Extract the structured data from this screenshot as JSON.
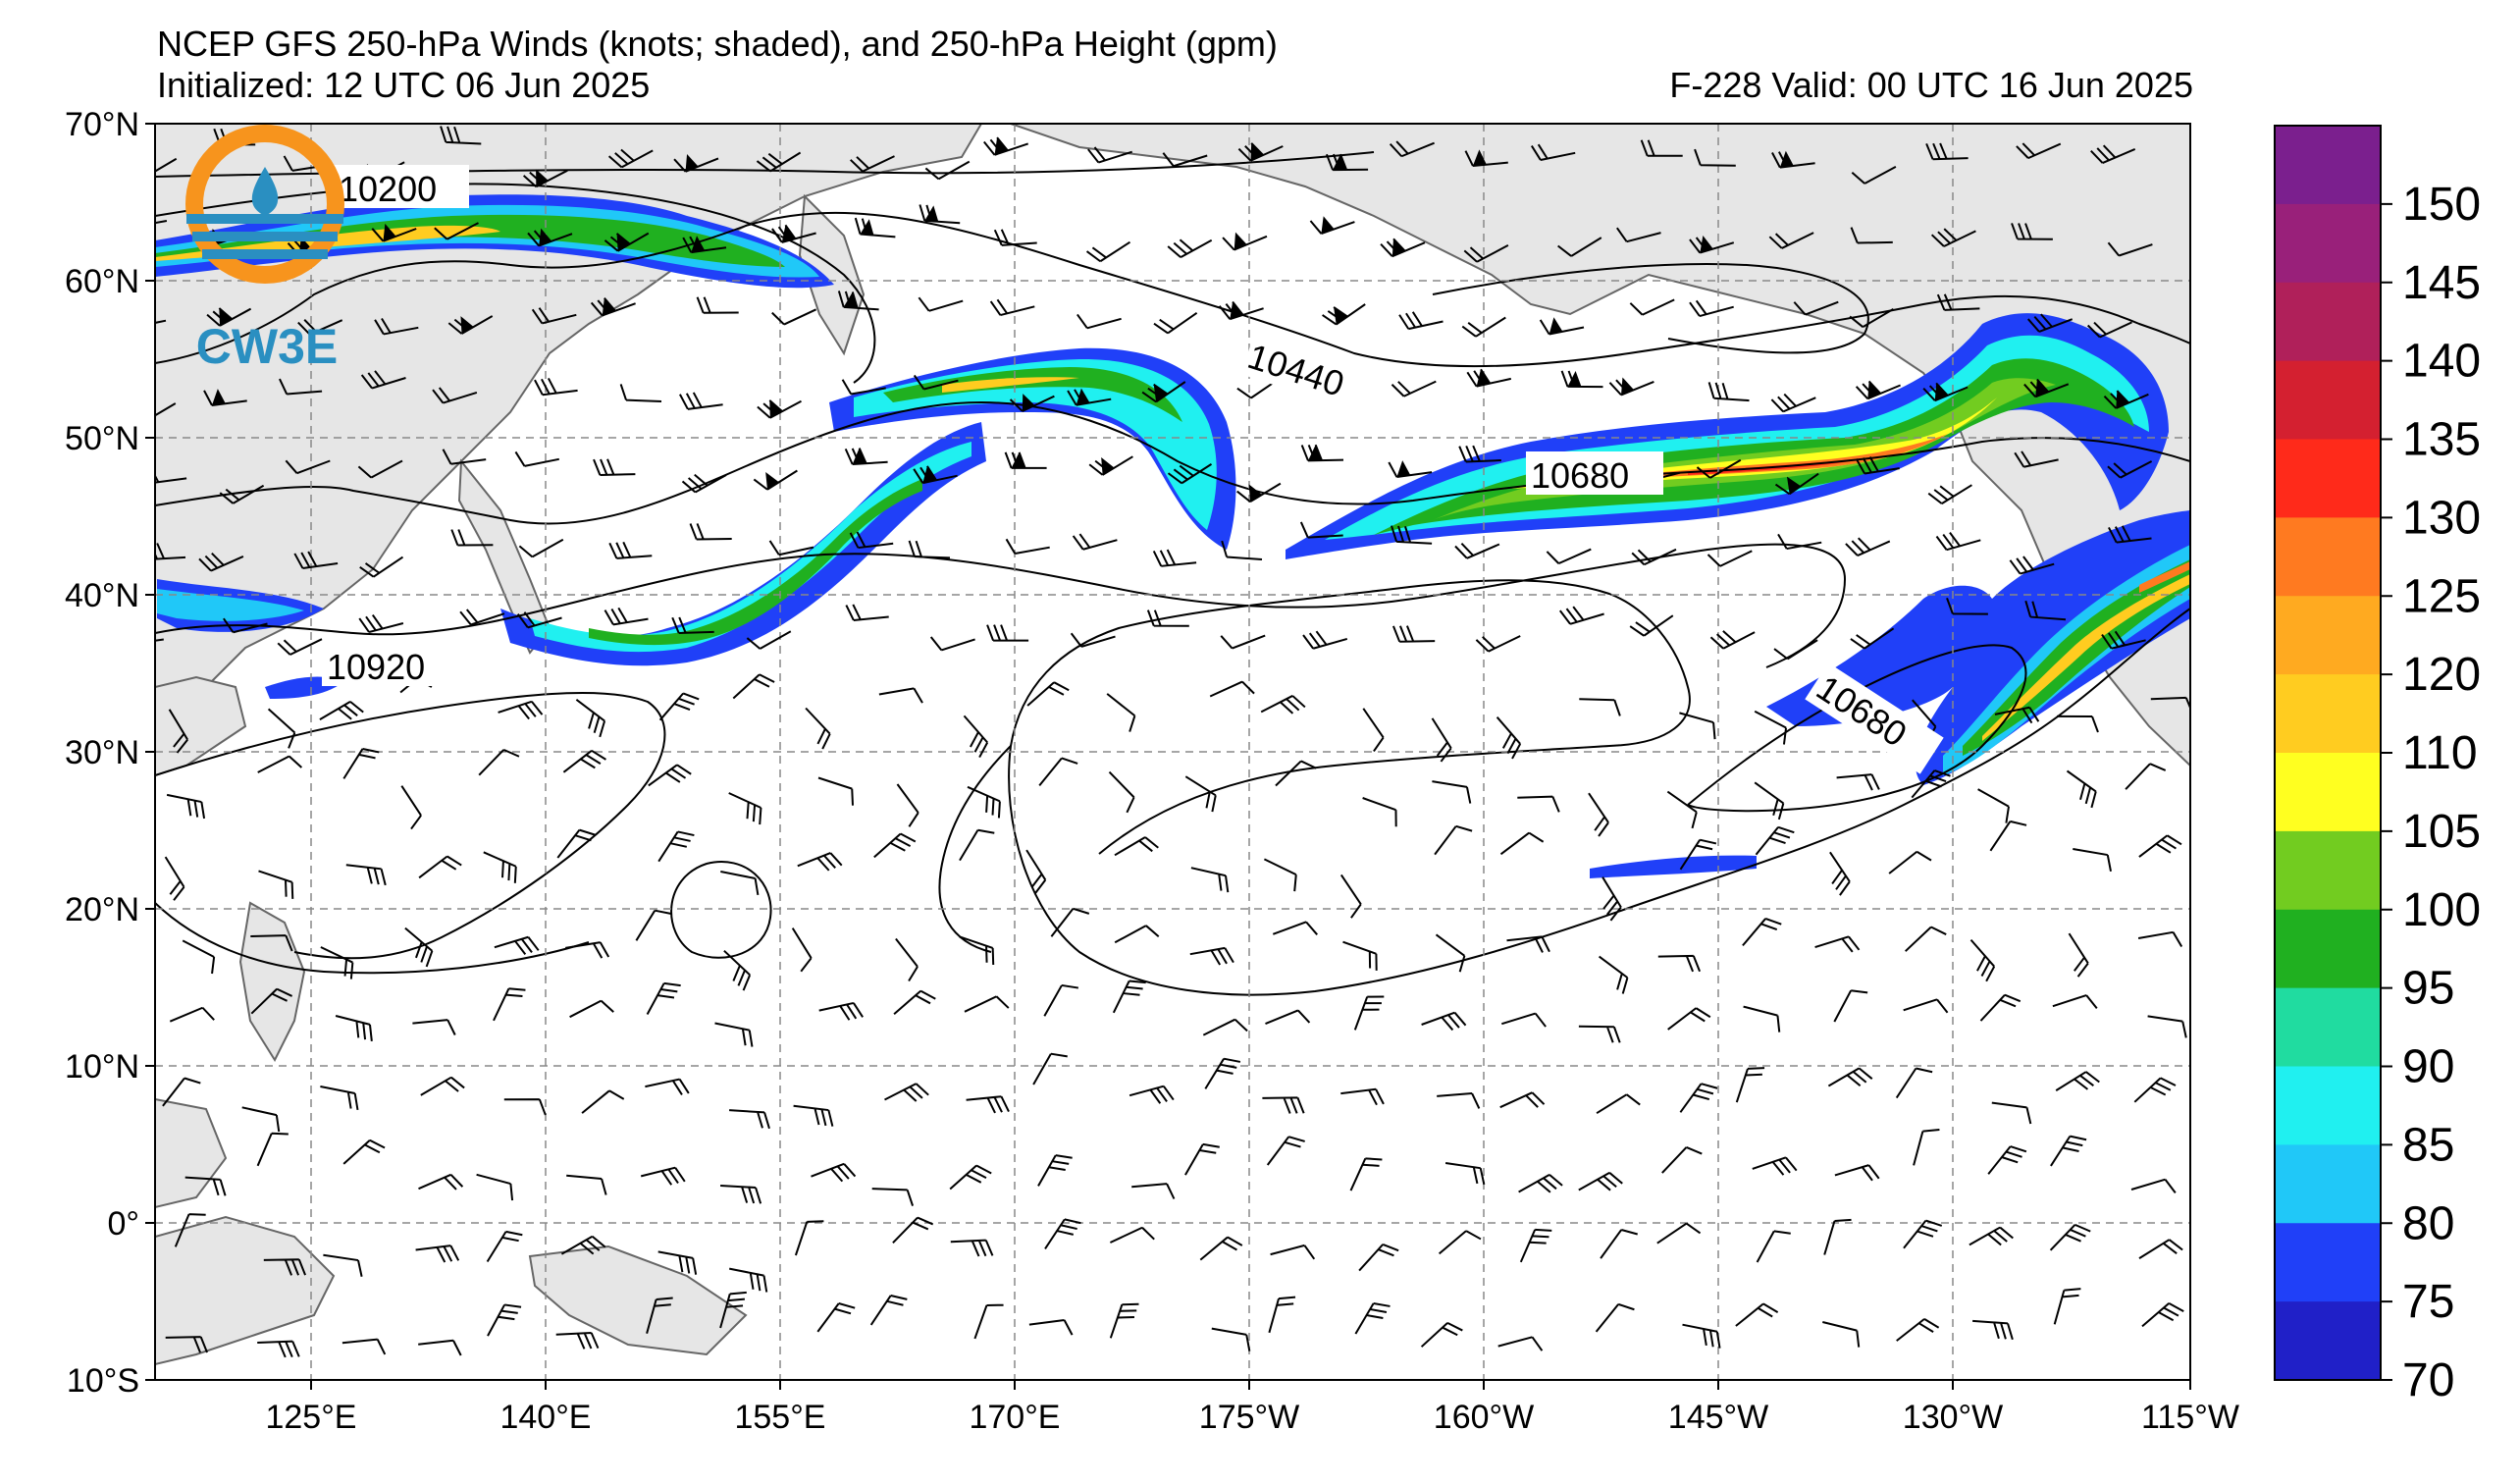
{
  "header": {
    "title_line1": "NCEP GFS 250-hPa Winds (knots; shaded), and 250-hPa Height (gpm)",
    "title_line2": "Initialized: 12 UTC 06 Jun 2025",
    "valid": "F-228  Valid: 00 UTC 16 Jun 2025"
  },
  "logo": {
    "text": "CW3E",
    "ring_color": "#f7941d",
    "text_color": "#2a8fc1"
  },
  "map": {
    "lat_labels": [
      "70°N",
      "60°N",
      "50°N",
      "40°N",
      "30°N",
      "20°N",
      "10°N",
      "0°",
      "10°S"
    ],
    "lon_labels": [
      "125°E",
      "140°E",
      "155°E",
      "170°E",
      "175°W",
      "160°W",
      "145°W",
      "130°W",
      "115°W"
    ],
    "land_color": "#e6e6e6",
    "coast_color": "#666666",
    "contour_labels": [
      "10200",
      "10440",
      "10680",
      "10920",
      "10680"
    ]
  },
  "colorbar": {
    "ticks": [
      "150",
      "145",
      "140",
      "135",
      "130",
      "125",
      "120",
      "110",
      "105",
      "100",
      "95",
      "90",
      "85",
      "80",
      "75",
      "70"
    ],
    "colors": [
      "#7b1f8e",
      "#99207a",
      "#b0205a",
      "#d42030",
      "#ff2a1a",
      "#ff7a20",
      "#ffaa20",
      "#ffcc20",
      "#ffff20",
      "#72cc20",
      "#20b020",
      "#20dca0",
      "#20f0f0",
      "#20c8f8",
      "#2040f8",
      "#2020c8"
    ]
  }
}
